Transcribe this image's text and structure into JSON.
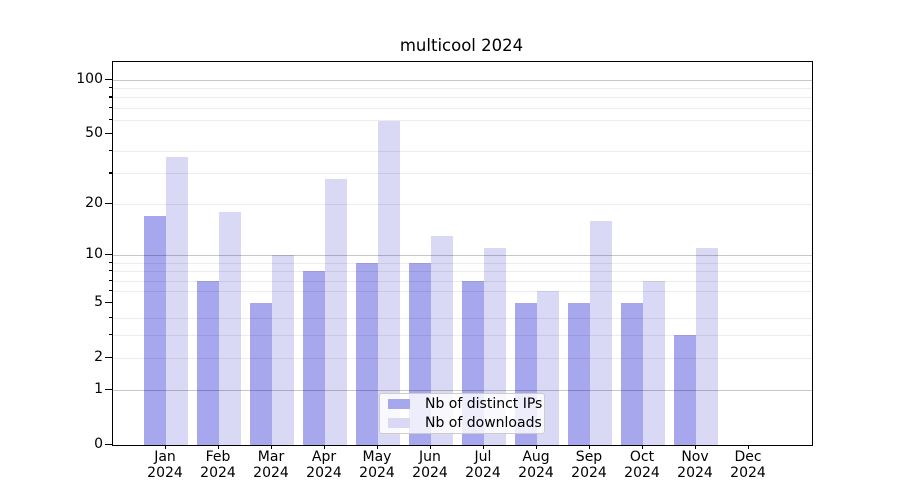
{
  "title": "multicool 2024",
  "chart_data": {
    "type": "bar",
    "title": "multicool 2024",
    "categories": [
      "Jan",
      "Feb",
      "Mar",
      "Apr",
      "May",
      "Jun",
      "Jul",
      "Aug",
      "Sep",
      "Oct",
      "Nov",
      "Dec"
    ],
    "year_label": "2024",
    "series": [
      {
        "name": "Nb of distinct IPs",
        "color": "#a7a7ee",
        "values": [
          17,
          7,
          5,
          8,
          9,
          9,
          7,
          5,
          5,
          5,
          3,
          0
        ]
      },
      {
        "name": "Nb of downloads",
        "color": "#d9d9f6",
        "values": [
          37,
          18,
          10,
          28,
          59,
          13,
          11,
          6,
          16,
          7,
          11,
          0
        ]
      }
    ],
    "scale": "log1p",
    "ylim": [
      0,
      125
    ],
    "y_tick_labels": [
      0,
      1,
      2,
      5,
      10,
      20,
      50,
      100
    ],
    "y_major_gridlines": [
      1,
      10,
      100
    ],
    "y_minor_gridlines": [
      2,
      3,
      4,
      6,
      7,
      8,
      9,
      20,
      30,
      40,
      60,
      70,
      80,
      90
    ],
    "grid": true,
    "legend_position": "lower center"
  },
  "colors": {
    "axis": "#000000",
    "series_ips": "#a7a7ee",
    "series_downloads": "#d9d9f6",
    "legend_border": "#cccccc"
  }
}
